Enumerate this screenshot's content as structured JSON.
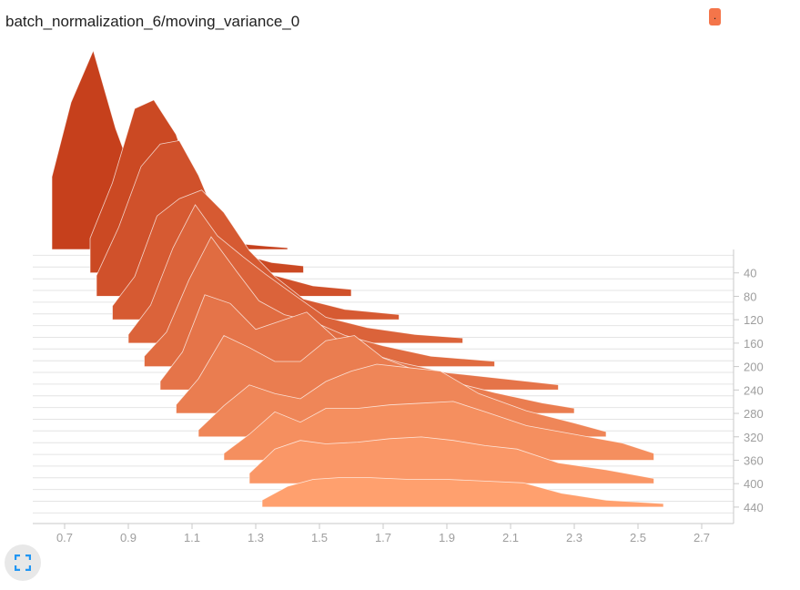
{
  "header": {
    "title": "batch_normalization_6/moving_variance_0",
    "run_badge_label": ".",
    "run_color": "#f4754a"
  },
  "icons": {
    "fullscreen": "fullscreen-icon"
  },
  "chart_data": {
    "type": "area",
    "kind": "histogram-offset",
    "title": "batch_normalization_6/moving_variance_0",
    "xlabel": "",
    "ylabel": "",
    "xlim": [
      0.6,
      2.8
    ],
    "x_ticks": [
      "0.7",
      "0.9",
      "1.1",
      "1.3",
      "1.5",
      "1.7",
      "1.9",
      "2.1",
      "2.3",
      "2.5",
      "2.7"
    ],
    "step_ticks": [
      "40",
      "80",
      "120",
      "160",
      "200",
      "240",
      "280",
      "320",
      "360",
      "400",
      "440"
    ],
    "step_range": [
      0,
      465
    ],
    "color_first_step": "#c6401c",
    "color_last_step": "#ffa06e",
    "series": [
      {
        "step": 0,
        "x": [
          0.66,
          0.72,
          0.79,
          0.86,
          0.92,
          0.98,
          1.05,
          1.12,
          1.2,
          1.27,
          1.33,
          1.4
        ],
        "y": [
          0.42,
          0.85,
          1.15,
          0.7,
          0.4,
          0.22,
          0.12,
          0.07,
          0.05,
          0.03,
          0.02,
          0.01
        ]
      },
      {
        "step": 40,
        "x": [
          0.78,
          0.85,
          0.92,
          0.98,
          1.05,
          1.12,
          1.2,
          1.27,
          1.35,
          1.45
        ],
        "y": [
          0.2,
          0.52,
          0.95,
          1.0,
          0.8,
          0.42,
          0.22,
          0.1,
          0.06,
          0.04
        ]
      },
      {
        "step": 80,
        "x": [
          0.8,
          0.87,
          0.94,
          1.0,
          1.06,
          1.12,
          1.2,
          1.28,
          1.36,
          1.48,
          1.6
        ],
        "y": [
          0.12,
          0.4,
          0.75,
          0.88,
          0.9,
          0.7,
          0.35,
          0.2,
          0.12,
          0.06,
          0.04
        ]
      },
      {
        "step": 120,
        "x": [
          0.85,
          0.92,
          0.99,
          1.06,
          1.13,
          1.2,
          1.28,
          1.36,
          1.45,
          1.58,
          1.75
        ],
        "y": [
          0.08,
          0.25,
          0.6,
          0.7,
          0.75,
          0.62,
          0.4,
          0.25,
          0.12,
          0.06,
          0.03
        ]
      },
      {
        "step": 160,
        "x": [
          0.9,
          0.97,
          1.04,
          1.11,
          1.18,
          1.26,
          1.33,
          1.42,
          1.52,
          1.65,
          1.8,
          1.95
        ],
        "y": [
          0.05,
          0.22,
          0.55,
          0.8,
          0.62,
          0.5,
          0.4,
          0.28,
          0.15,
          0.09,
          0.05,
          0.03
        ]
      },
      {
        "step": 200,
        "x": [
          0.95,
          1.02,
          1.09,
          1.16,
          1.24,
          1.31,
          1.39,
          1.48,
          1.58,
          1.7,
          1.85,
          2.05
        ],
        "y": [
          0.06,
          0.2,
          0.5,
          0.75,
          0.55,
          0.38,
          0.3,
          0.26,
          0.18,
          0.12,
          0.06,
          0.03
        ]
      },
      {
        "step": 240,
        "x": [
          1.0,
          1.07,
          1.14,
          1.22,
          1.3,
          1.38,
          1.46,
          1.55,
          1.64,
          1.75,
          1.9,
          2.1,
          2.25
        ],
        "y": [
          0.05,
          0.22,
          0.55,
          0.5,
          0.35,
          0.4,
          0.45,
          0.3,
          0.22,
          0.16,
          0.1,
          0.06,
          0.03
        ]
      },
      {
        "step": 280,
        "x": [
          1.05,
          1.12,
          1.2,
          1.28,
          1.36,
          1.44,
          1.52,
          1.61,
          1.7,
          1.8,
          1.92,
          2.05,
          2.2,
          2.3
        ],
        "y": [
          0.05,
          0.2,
          0.45,
          0.38,
          0.3,
          0.3,
          0.42,
          0.45,
          0.32,
          0.25,
          0.18,
          0.12,
          0.06,
          0.03
        ]
      },
      {
        "step": 320,
        "x": [
          1.12,
          1.2,
          1.28,
          1.36,
          1.44,
          1.52,
          1.6,
          1.68,
          1.78,
          1.88,
          2.0,
          2.15,
          2.3,
          2.4
        ],
        "y": [
          0.04,
          0.18,
          0.3,
          0.25,
          0.22,
          0.32,
          0.38,
          0.42,
          0.4,
          0.38,
          0.25,
          0.15,
          0.08,
          0.03
        ]
      },
      {
        "step": 360,
        "x": [
          1.2,
          1.28,
          1.36,
          1.44,
          1.52,
          1.62,
          1.72,
          1.82,
          1.92,
          2.02,
          2.15,
          2.3,
          2.45,
          2.55
        ],
        "y": [
          0.04,
          0.15,
          0.28,
          0.22,
          0.3,
          0.3,
          0.32,
          0.33,
          0.34,
          0.28,
          0.2,
          0.15,
          0.1,
          0.04
        ]
      },
      {
        "step": 400,
        "x": [
          1.28,
          1.36,
          1.44,
          1.52,
          1.62,
          1.72,
          1.82,
          1.92,
          2.02,
          2.12,
          2.25,
          2.4,
          2.55
        ],
        "y": [
          0.06,
          0.2,
          0.25,
          0.23,
          0.24,
          0.26,
          0.27,
          0.25,
          0.22,
          0.2,
          0.12,
          0.08,
          0.03
        ]
      },
      {
        "step": 440,
        "x": [
          1.32,
          1.4,
          1.48,
          1.56,
          1.66,
          1.78,
          1.9,
          2.02,
          2.14,
          2.26,
          2.4,
          2.58
        ],
        "y": [
          0.04,
          0.12,
          0.16,
          0.17,
          0.17,
          0.16,
          0.16,
          0.15,
          0.14,
          0.08,
          0.04,
          0.02
        ]
      }
    ]
  }
}
